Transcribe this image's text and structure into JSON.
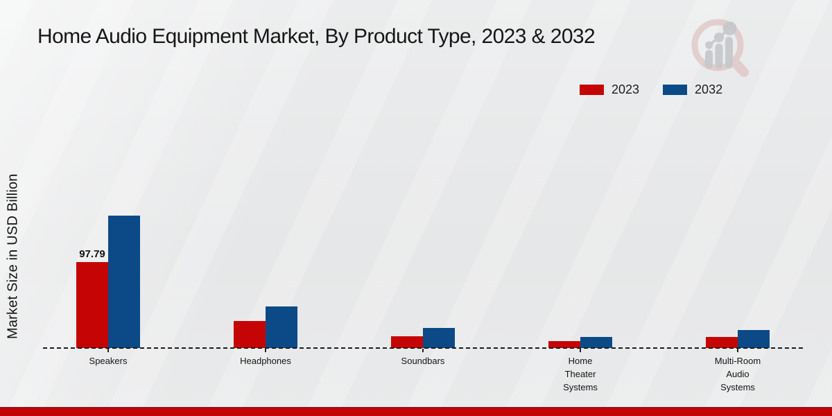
{
  "chart_data": {
    "type": "bar",
    "title": "Home Audio Equipment Market, By Product Type, 2023 & 2032",
    "ylabel": "Market Size in USD Billion",
    "xlabel": "",
    "units": "USD Billion",
    "categories": [
      "Speakers",
      "Headphones",
      "Soundbars",
      "Home Theater Systems",
      "Multi-Room Audio Systems"
    ],
    "category_label_lines": [
      [
        "Speakers"
      ],
      [
        "Headphones"
      ],
      [
        "Soundbars"
      ],
      [
        "Home",
        "Theater",
        "Systems"
      ],
      [
        "Multi-Room",
        "Audio",
        "Systems"
      ]
    ],
    "series": [
      {
        "name": "2023",
        "color": "#c50505",
        "values": [
          97.79,
          30.7,
          13.4,
          7.9,
          12.6
        ],
        "value_labels": [
          "97.79",
          null,
          null,
          null,
          null
        ]
      },
      {
        "name": "2032",
        "color": "#0b4a87",
        "values": [
          150.6,
          47.3,
          22.9,
          12.6,
          20.5
        ],
        "value_labels": [
          null,
          null,
          null,
          null,
          null
        ]
      }
    ],
    "legend_position": "top-right",
    "grid": false,
    "baseline_style": "dashed",
    "ylim": [
      0,
      160
    ]
  },
  "icons": {
    "logo": "bar-chart-magnifier-watermark"
  },
  "colors": {
    "accent_red": "#c50505",
    "accent_blue": "#0b4a87",
    "footer_bar": "#c40404",
    "footer_border": "#9b1010",
    "background": "#e8e9ea",
    "text": "#161616",
    "logo_pink": "#dcb4b4",
    "logo_gray": "#c6c8cb"
  }
}
